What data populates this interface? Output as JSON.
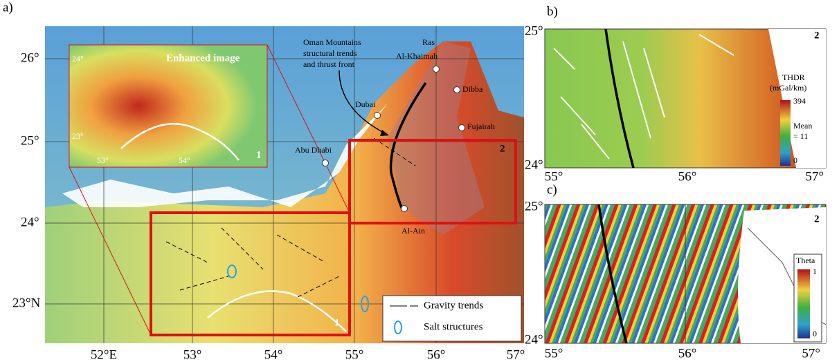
{
  "panel_a": {
    "label": "a)",
    "lat_labels": [
      "26°",
      "25°",
      "24°",
      "23°N"
    ],
    "lon_labels": [
      "52°E",
      "53°",
      "54°",
      "55°",
      "56°",
      "57°"
    ],
    "inset": {
      "title": "Enhanced image",
      "lat_labels": [
        "24°",
        "23°"
      ],
      "lon_labels": [
        "53°",
        "54°"
      ],
      "number": "1"
    },
    "box_numbers": [
      "1",
      "2"
    ],
    "cities": [
      "Dubai",
      "Dibba",
      "Fujairah",
      "Abu Dhabi",
      "Al-Ain"
    ],
    "ras_al_khaimah": [
      "Ras",
      "Al-Khaimah"
    ],
    "annotation": [
      "Oman Mountains",
      "structural trends",
      "and thrust front"
    ],
    "legend": [
      "Gravity trends",
      "Salt structures"
    ]
  },
  "panel_b": {
    "label": "b)",
    "lat_labels": [
      "25°",
      "24°"
    ],
    "lon_labels": [
      "55°",
      "56°",
      "57°"
    ],
    "number": "2",
    "colorbar": {
      "title": [
        "THDR",
        "(mGal/km)"
      ],
      "max": "394",
      "mean": [
        "Mean",
        "= 11"
      ],
      "min": "0"
    }
  },
  "panel_c": {
    "label": "c)",
    "lat_labels": [
      "25°",
      "24°"
    ],
    "lon_labels": [
      "55°",
      "56°",
      "57°"
    ],
    "number": "2",
    "colorbar": {
      "title": "Theta",
      "max": "1",
      "min": "0"
    }
  }
}
